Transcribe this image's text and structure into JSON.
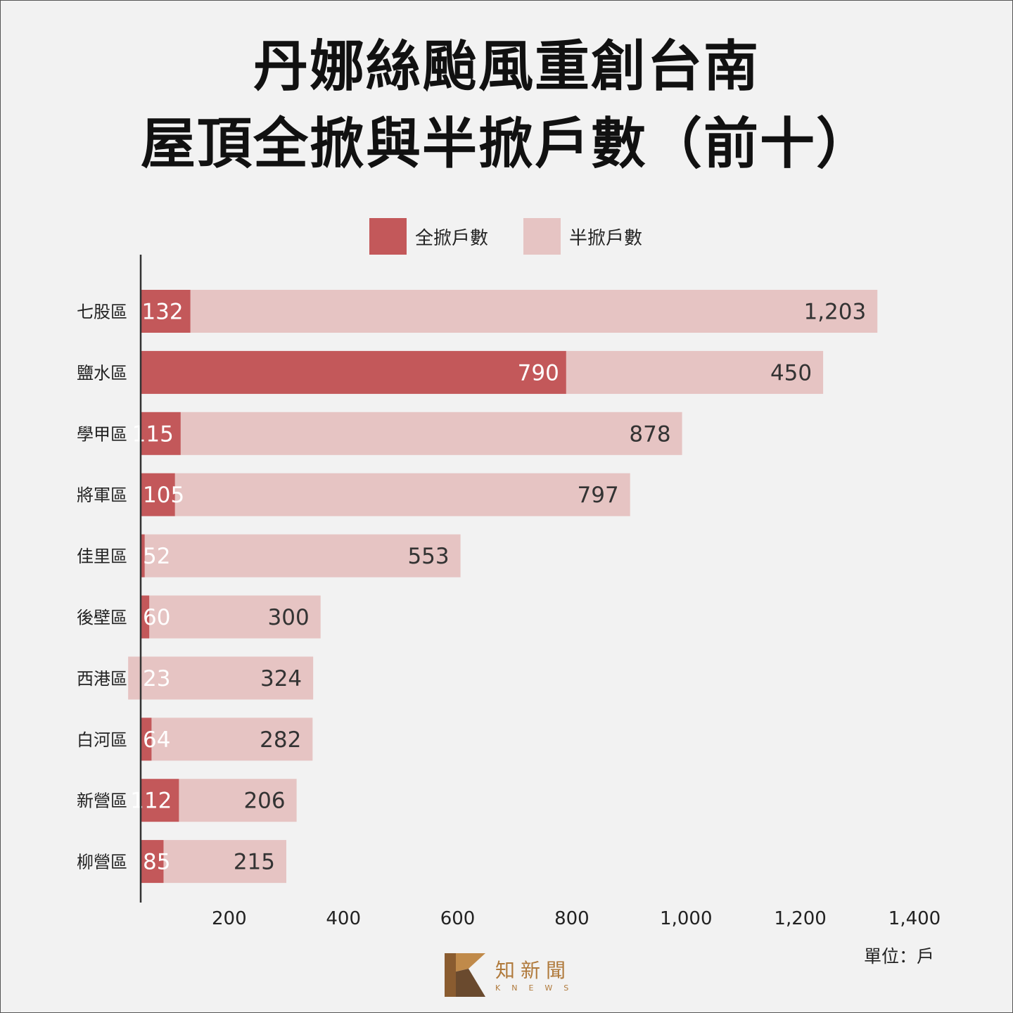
{
  "title": {
    "line1": "丹娜絲颱風重創台南",
    "line2": "屋頂全掀與半掀戶數（前十）"
  },
  "legend": {
    "full": "全掀戶數",
    "half": "半掀戶數"
  },
  "unit_label": "單位：戶",
  "brand": {
    "name_cn": "知新聞",
    "name_en": "KNEWS"
  },
  "colors": {
    "full": "#c3585a",
    "half": "#e6c4c3",
    "axis": "#333333"
  },
  "chart_data": {
    "type": "bar",
    "orientation": "horizontal",
    "stacked": true,
    "categories": [
      "七股區",
      "鹽水區",
      "學甲區",
      "將軍區",
      "佳里區",
      "後壁區",
      "西港區",
      "白河區",
      "新營區",
      "柳營區"
    ],
    "series": [
      {
        "name": "全掀戶數",
        "values": [
          132,
          790,
          115,
          105,
          52,
          60,
          23,
          64,
          112,
          85
        ]
      },
      {
        "name": "半掀戶數",
        "values": [
          1203,
          450,
          878,
          797,
          553,
          300,
          324,
          282,
          206,
          215
        ]
      }
    ],
    "x_ticks": [
      200,
      400,
      600,
      800,
      1000,
      1200,
      1400
    ],
    "x_tick_labels": [
      "200",
      "400",
      "600",
      "800",
      "1,000",
      "1,200",
      "1,400"
    ],
    "xlim": [
      45,
      1400
    ],
    "grid": false,
    "legend_position": "top-center"
  }
}
